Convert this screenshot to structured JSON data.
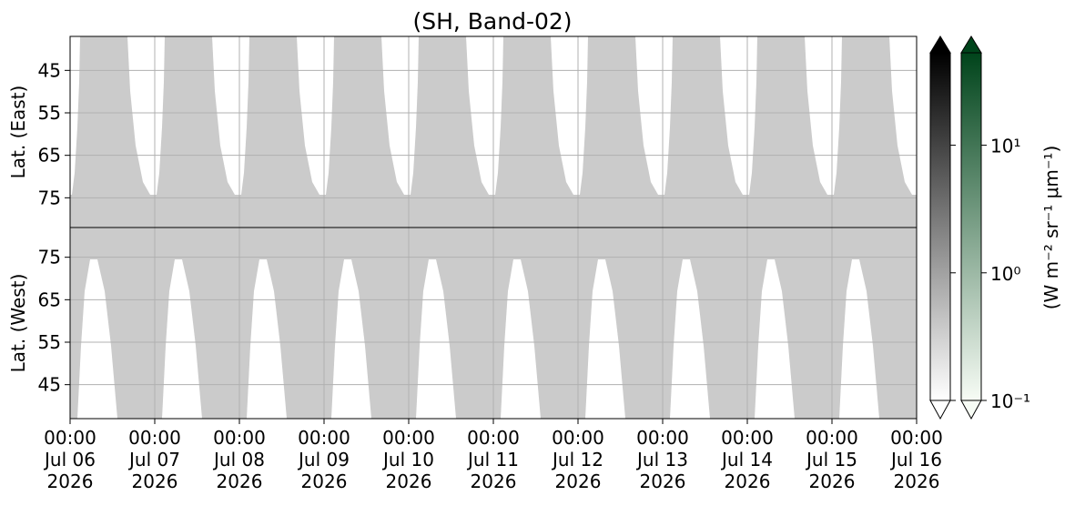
{
  "chart_data": [
    {
      "type": "swath",
      "title": "(SH, Band-02)",
      "ylabel": "Lat. (East)",
      "ylim": [
        82,
        37
      ],
      "yticks": [
        45,
        55,
        65,
        75
      ],
      "xlim": [
        "2026-07-06T00:00",
        "2026-07-16T00:00"
      ],
      "xticks": [
        "2026-07-06T00:00",
        "2026-07-07T00:00",
        "2026-07-08T00:00",
        "2026-07-09T00:00",
        "2026-07-10T00:00",
        "2026-07-11T00:00",
        "2026-07-12T00:00",
        "2026-07-13T00:00",
        "2026-07-14T00:00",
        "2026-07-15T00:00",
        "2026-07-16T00:00"
      ],
      "grid": true,
      "color": "#cbcbcb"
    },
    {
      "type": "swath",
      "ylabel": "Lat. (West)",
      "ylim": [
        37,
        82
      ],
      "yticks": [
        45,
        55,
        65,
        75
      ],
      "xlim": [
        "2026-07-06T00:00",
        "2026-07-16T00:00"
      ],
      "xticks": [
        {
          "value": "2026-07-06T00:00",
          "label": "00:00\nJul 06\n2026"
        },
        {
          "value": "2026-07-07T00:00",
          "label": "00:00\nJul 07\n2026"
        },
        {
          "value": "2026-07-08T00:00",
          "label": "00:00\nJul 08\n2026"
        },
        {
          "value": "2026-07-09T00:00",
          "label": "00:00\nJul 09\n2026"
        },
        {
          "value": "2026-07-10T00:00",
          "label": "00:00\nJul 10\n2026"
        },
        {
          "value": "2026-07-11T00:00",
          "label": "00:00\nJul 11\n2026"
        },
        {
          "value": "2026-07-12T00:00",
          "label": "00:00\nJul 12\n2026"
        },
        {
          "value": "2026-07-13T00:00",
          "label": "00:00\nJul 13\n2026"
        },
        {
          "value": "2026-07-14T00:00",
          "label": "00:00\nJul 14\n2026"
        },
        {
          "value": "2026-07-15T00:00",
          "label": "00:00\nJul 15\n2026"
        },
        {
          "value": "2026-07-16T00:00",
          "label": "00:00\nJul 16\n2026"
        }
      ],
      "grid": true,
      "color": "#cbcbcb"
    }
  ],
  "colorbar": {
    "label": "(W m⁻² sr⁻¹ μm⁻¹)",
    "log": true,
    "clim": [
      0.1,
      53
    ],
    "extend": "both",
    "ticks": [
      {
        "value": 0.1,
        "label": "10⁻¹"
      },
      {
        "value": 1,
        "label": "10⁰"
      },
      {
        "value": 10,
        "label": "10¹"
      }
    ],
    "colormaps": [
      [
        "#ffffff",
        "#000000"
      ],
      [
        "#f7fcf5",
        "#00441b"
      ]
    ]
  }
}
